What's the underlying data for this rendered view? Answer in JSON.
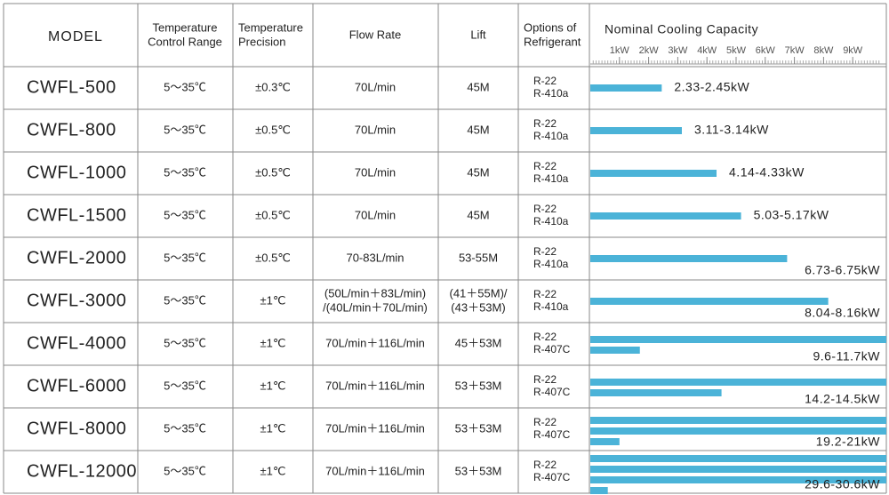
{
  "header": {
    "model": "MODEL",
    "temp_range": [
      "Temperature",
      "Control Range"
    ],
    "precision": [
      "Temperature",
      "Precision"
    ],
    "flow": [
      "Flow Rate"
    ],
    "lift": [
      "Lift"
    ],
    "refrigerant": [
      "Options of",
      "Refrigerant"
    ]
  },
  "capacity_axis": {
    "title": "Nominal Cooling Capacity",
    "xlim": [
      0,
      10
    ],
    "xticks": [
      {
        "value": 1,
        "label": "1kW"
      },
      {
        "value": 2,
        "label": "2kW"
      },
      {
        "value": 3,
        "label": "3kW"
      },
      {
        "value": 4,
        "label": "4kW"
      },
      {
        "value": 5,
        "label": "5kW"
      },
      {
        "value": 6,
        "label": "6kW"
      },
      {
        "value": 7,
        "label": "7kW"
      },
      {
        "value": 8,
        "label": "8kW"
      },
      {
        "value": 9,
        "label": "9kW"
      }
    ],
    "color": "#4bb3d8"
  },
  "rows": [
    {
      "model": "CWFL-500",
      "temp_range": "5～35℃",
      "precision": "±0.3℃",
      "flow": [
        "70L/min"
      ],
      "lift": [
        "45M"
      ],
      "refrigerant": [
        "R-22",
        "R-410a"
      ],
      "capacity": 2.45,
      "capacity_label": "2.33-2.45kW"
    },
    {
      "model": "CWFL-800",
      "temp_range": "5～35℃",
      "precision": "±0.5℃",
      "flow": [
        "70L/min"
      ],
      "lift": [
        "45M"
      ],
      "refrigerant": [
        "R-22",
        "R-410a"
      ],
      "capacity": 3.14,
      "capacity_label": "3.11-3.14kW"
    },
    {
      "model": "CWFL-1000",
      "temp_range": "5～35℃",
      "precision": "±0.5℃",
      "flow": [
        "70L/min"
      ],
      "lift": [
        "45M"
      ],
      "refrigerant": [
        "R-22",
        "R-410a"
      ],
      "capacity": 4.33,
      "capacity_label": "4.14-4.33kW"
    },
    {
      "model": "CWFL-1500",
      "temp_range": "5～35℃",
      "precision": "±0.5℃",
      "flow": [
        "70L/min"
      ],
      "lift": [
        "45M"
      ],
      "refrigerant": [
        "R-22",
        "R-410a"
      ],
      "capacity": 5.17,
      "capacity_label": "5.03-5.17kW"
    },
    {
      "model": "CWFL-2000",
      "temp_range": "5～35℃",
      "precision": "±0.5℃",
      "flow": [
        "70-83L/min"
      ],
      "lift": [
        "53-55M"
      ],
      "refrigerant": [
        "R-22",
        "R-410a"
      ],
      "capacity": 6.75,
      "capacity_label": "6.73-6.75kW"
    },
    {
      "model": "CWFL-3000",
      "temp_range": "5～35℃",
      "precision": "±1℃",
      "flow": [
        "(50L/min＋83L/min)",
        "/(40L/min＋70L/min)"
      ],
      "lift": [
        "(41＋55M)/",
        "(43＋53M)"
      ],
      "refrigerant": [
        "R-22",
        "R-410a"
      ],
      "capacity": 8.16,
      "capacity_label": "8.04-8.16kW"
    },
    {
      "model": "CWFL-4000",
      "temp_range": "5～35℃",
      "precision": "±1℃",
      "flow": [
        "70L/min＋116L/min"
      ],
      "lift": [
        "45＋53M"
      ],
      "refrigerant": [
        "R-22",
        "R-407C"
      ],
      "capacity": 11.7,
      "capacity_label": "9.6-11.7kW"
    },
    {
      "model": "CWFL-6000",
      "temp_range": "5～35℃",
      "precision": "±1℃",
      "flow": [
        "70L/min＋116L/min"
      ],
      "lift": [
        "53＋53M"
      ],
      "refrigerant": [
        "R-22",
        "R-407C"
      ],
      "capacity": 14.5,
      "capacity_label": "14.2-14.5kW"
    },
    {
      "model": "CWFL-8000",
      "temp_range": "5～35℃",
      "precision": "±1℃",
      "flow": [
        "70L/min＋116L/min"
      ],
      "lift": [
        "53＋53M"
      ],
      "refrigerant": [
        "R-22",
        "R-407C"
      ],
      "capacity": 21,
      "capacity_label": "19.2-21kW"
    },
    {
      "model": "CWFL-12000",
      "temp_range": "5～35℃",
      "precision": "±1℃",
      "flow": [
        "70L/min＋116L/min"
      ],
      "lift": [
        "53＋53M"
      ],
      "refrigerant": [
        "R-22",
        "R-407C"
      ],
      "capacity": 30.6,
      "capacity_label": "29.6-30.6kW"
    }
  ]
}
